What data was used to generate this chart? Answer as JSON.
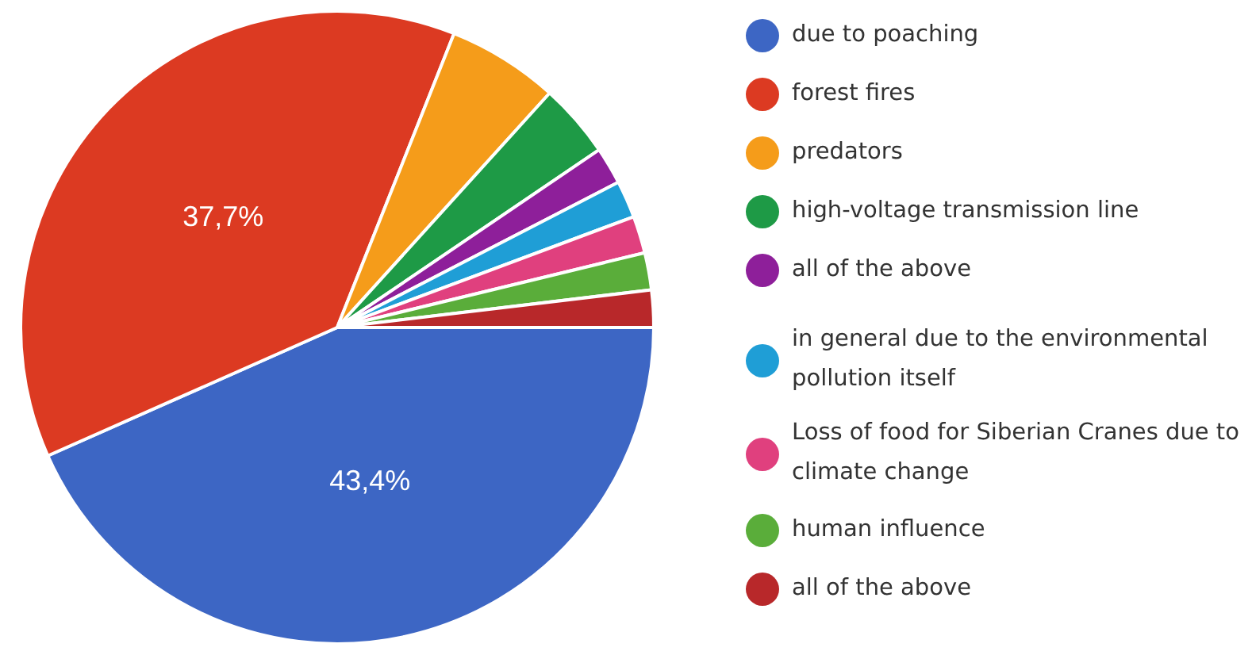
{
  "chart_data": {
    "type": "pie",
    "categories": [
      "due to poaching",
      "forest fires",
      "predators",
      "high-voltage transmission line",
      "all of the above",
      "in general due to the environmental pollution itself",
      "Loss of food for Siberian Cranes due to climate change",
      "human influence",
      "all of the above"
    ],
    "values": [
      43.4,
      37.7,
      5.7,
      3.8,
      1.9,
      1.9,
      1.9,
      1.9,
      1.9
    ],
    "colors": [
      "#3d66c4",
      "#dc3a22",
      "#f59c1a",
      "#1e9a46",
      "#8e1f9a",
      "#1f9ed6",
      "#e0407e",
      "#5aad3a",
      "#b8282a"
    ],
    "value_labels": [
      "43,4%",
      "37,7%",
      null,
      null,
      null,
      null,
      null,
      null,
      null
    ],
    "legend": "right"
  }
}
